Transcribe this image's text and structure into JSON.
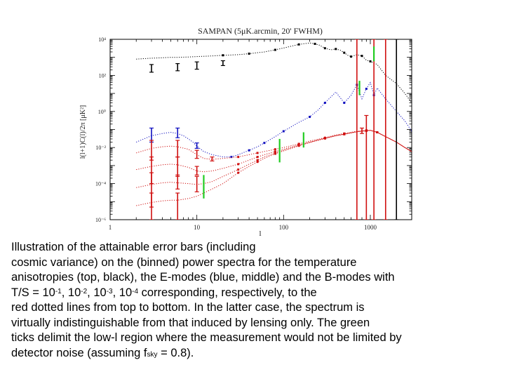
{
  "chart_data": {
    "type": "line",
    "title": "SAMPAN  (5μK.arcmin, 20' FWHM)",
    "xlabel": "l",
    "ylabel": "l(l+1)C(l)/2π [μK²]",
    "xscale": "log",
    "yscale": "log",
    "xlim": [
      1,
      3000
    ],
    "ylim": [
      1e-06,
      10000
    ],
    "xticks": [
      {
        "value": 1,
        "label": "1"
      },
      {
        "value": 10,
        "label": "10"
      },
      {
        "value": 100,
        "label": "100"
      },
      {
        "value": 1000,
        "label": "1000"
      }
    ],
    "yticks": [
      {
        "value": 10000,
        "label": "10⁴"
      },
      {
        "value": 100,
        "label": "10²"
      },
      {
        "value": 1,
        "label": "10⁰"
      },
      {
        "value": 0.01,
        "label": "10⁻²"
      },
      {
        "value": 0.0001,
        "label": "10⁻⁴"
      },
      {
        "value": 1e-06,
        "label": "10⁻⁶"
      }
    ],
    "series": [
      {
        "color": "#000000",
        "x": [
          2,
          3,
          4,
          5,
          6,
          8,
          10,
          15,
          20,
          30,
          40,
          60,
          80,
          100,
          150,
          200,
          230,
          260,
          300,
          350,
          400,
          450,
          500,
          550,
          600,
          700,
          800,
          900,
          1000,
          1200,
          1500,
          2000,
          2500,
          3000
        ],
        "y": [
          800,
          900,
          950,
          1000,
          1000,
          1050,
          1100,
          1200,
          1300,
          1400,
          1600,
          2000,
          2600,
          3300,
          5200,
          6300,
          5600,
          4700,
          3200,
          2600,
          2900,
          2500,
          1800,
          1300,
          1100,
          1400,
          1200,
          700,
          600,
          400,
          100,
          35,
          10,
          3
        ]
      },
      {
        "color": "#1010c0",
        "x": [
          2,
          3,
          4,
          5,
          6,
          7,
          8,
          9,
          10,
          12,
          15,
          20,
          25,
          30,
          40,
          50,
          60,
          80,
          100,
          150,
          200,
          250,
          300,
          400,
          500,
          600,
          700,
          800,
          900,
          1000,
          1100,
          1200,
          1300,
          1500,
          1700,
          2000,
          2500,
          3000
        ],
        "y": [
          0.02,
          0.045,
          0.06,
          0.07,
          0.06,
          0.045,
          0.03,
          0.02,
          0.012,
          0.006,
          0.004,
          0.003,
          0.003,
          0.004,
          0.007,
          0.011,
          0.018,
          0.04,
          0.08,
          0.25,
          0.5,
          1.2,
          3,
          12,
          3,
          8,
          30,
          5,
          18,
          40,
          8,
          20,
          12,
          5,
          2.5,
          1,
          0.3,
          0.08
        ]
      },
      {
        "color": "#d01010",
        "x": [
          2,
          3,
          4,
          5,
          6,
          8,
          10,
          12,
          15,
          20,
          30,
          40,
          50,
          60,
          80,
          100,
          150,
          200,
          300,
          400,
          500,
          700,
          900,
          1000,
          1200,
          1500,
          2000,
          2500,
          3000
        ],
        "y": [
          0.005,
          0.009,
          0.011,
          0.012,
          0.011,
          0.008,
          0.004,
          0.0025,
          0.0022,
          0.0025,
          0.003,
          0.004,
          0.005,
          0.006,
          0.008,
          0.01,
          0.016,
          0.023,
          0.035,
          0.05,
          0.06,
          0.08,
          0.09,
          0.09,
          0.07,
          0.04,
          0.02,
          0.01,
          0.006
        ]
      },
      {
        "color": "#d01010",
        "x": [
          2,
          3,
          4,
          5,
          6,
          8,
          10,
          12,
          15,
          20,
          30,
          40,
          50,
          60,
          80,
          100,
          150,
          200,
          300,
          400,
          500,
          700,
          900,
          1000,
          1200,
          1500,
          2000,
          2500,
          3000
        ],
        "y": [
          0.0006,
          0.0009,
          0.0011,
          0.0012,
          0.0011,
          0.0008,
          0.0005,
          0.00045,
          0.0005,
          0.0007,
          0.0012,
          0.002,
          0.003,
          0.004,
          0.006,
          0.008,
          0.014,
          0.02,
          0.033,
          0.045,
          0.055,
          0.075,
          0.085,
          0.09,
          0.07,
          0.04,
          0.02,
          0.01,
          0.006
        ]
      },
      {
        "color": "#d01010",
        "x": [
          2,
          3,
          4,
          5,
          6,
          8,
          10,
          12,
          15,
          20,
          30,
          40,
          50,
          60,
          80,
          100,
          150,
          200,
          300,
          400,
          500,
          700,
          900,
          1000,
          1200,
          1500,
          2000,
          2500,
          3000
        ],
        "y": [
          6e-05,
          9e-05,
          0.00011,
          0.00012,
          0.00011,
          0.0001,
          9e-05,
          0.0001,
          0.00013,
          0.00025,
          0.0006,
          0.0012,
          0.002,
          0.003,
          0.005,
          0.007,
          0.013,
          0.019,
          0.032,
          0.045,
          0.055,
          0.075,
          0.085,
          0.09,
          0.07,
          0.04,
          0.02,
          0.01,
          0.006
        ]
      },
      {
        "color": "#d01010",
        "x": [
          2,
          3,
          4,
          5,
          6,
          8,
          10,
          12,
          15,
          20,
          30,
          40,
          50,
          60,
          80,
          100,
          150,
          200,
          300,
          400,
          500,
          700,
          900,
          1000,
          1200,
          1500,
          2000,
          2500,
          3000
        ],
        "y": [
          6e-06,
          9e-06,
          1.1e-05,
          1.2e-05,
          1.2e-05,
          1.5e-05,
          2e-05,
          3e-05,
          5e-05,
          0.0001,
          0.0004,
          0.0009,
          0.0016,
          0.0025,
          0.0045,
          0.0065,
          0.0125,
          0.019,
          0.032,
          0.045,
          0.055,
          0.075,
          0.085,
          0.09,
          0.07,
          0.04,
          0.02,
          0.01,
          0.006
        ]
      }
    ],
    "error_bars": [
      {
        "color": "#000000",
        "points": [
          [
            3,
            150,
            400
          ],
          [
            6,
            180,
            450
          ],
          [
            10,
            220,
            560
          ],
          [
            20,
            350,
            650
          ]
        ]
      },
      {
        "color": "#1010c0",
        "points": [
          [
            3,
            0.02,
            0.12
          ],
          [
            6,
            0.035,
            0.12
          ],
          [
            10,
            0.009,
            0.018
          ]
        ]
      },
      {
        "color": "#d01010",
        "points": [
          [
            3,
            0.002,
            0.025
          ],
          [
            6,
            0.003,
            0.025
          ],
          [
            10,
            0.0025,
            0.007
          ],
          [
            15,
            0.0018,
            0.003
          ],
          [
            800,
            0.06,
            0.12
          ]
        ]
      },
      {
        "color": "#d01010",
        "points": [
          [
            3,
            0.0001,
            0.003
          ],
          [
            6,
            0.00025,
            0.003
          ],
          [
            10,
            0.0003,
            0.0009
          ]
        ]
      },
      {
        "color": "#d01010",
        "points": [
          [
            3,
            5e-06,
            0.0004
          ],
          [
            6,
            5e-05,
            0.0003
          ],
          [
            10,
            3.5e-05,
            0.00025
          ]
        ]
      },
      {
        "color": "#d01010",
        "points": [
          [
            3,
            3e-07,
            3e-05
          ],
          [
            6,
            8e-07,
            3e-05
          ]
        ]
      },
      {
        "color": "#d01010",
        "points": [
          [
            700,
            1e-07,
            1000000000.0
          ],
          [
            900,
            1e-07,
            0.6
          ],
          [
            1100,
            1e-07,
            1000000000.0
          ],
          [
            1500,
            1e-07,
            1000000000.0
          ]
        ]
      },
      {
        "color": "#000000",
        "points": [
          [
            2000,
            1e-07,
            1000000000.0
          ]
        ]
      }
    ],
    "green_ticks": [
      {
        "x": 12,
        "low": 1.5e-05,
        "high": 0.0003
      },
      {
        "x": 90,
        "low": 0.0015,
        "high": 0.03
      },
      {
        "x": 170,
        "low": 0.01,
        "high": 0.07
      },
      {
        "x": 750,
        "low": 8,
        "high": 50
      },
      {
        "x": 1100,
        "low": 600,
        "high": 4000
      }
    ],
    "colors": {
      "black": "#000000",
      "blue": "#1010c0",
      "red": "#d01010",
      "green": "#22cc22"
    }
  },
  "caption": {
    "line1": "Illustration of the attainable error bars (including",
    "line2": "cosmic variance) on the (binned) power spectra for the temperature",
    "line3": "anisotropies (top, black), the E-modes (blue, middle) and the B-modes with",
    "line4_a": "T/S = 10",
    "line4_b": "-1",
    "line4_c": ", 10",
    "line4_d": "-2",
    "line4_e": ", 10",
    "line4_f": "-3",
    "line4_g": ", 10",
    "line4_h": "-4",
    "line4_i": " corresponding, respectively, to the",
    "line5": "red dotted lines from top to bottom. In the latter case, the spectrum is",
    "line6": "virtually indistinguishable from that induced by lensing only.  The green",
    "line7": "ticks delimit the low-l region where the measurement would not be limited by",
    "line8_a": "detector noise (assuming f",
    "line8_b": "sky",
    "line8_c": " = 0.8)."
  }
}
